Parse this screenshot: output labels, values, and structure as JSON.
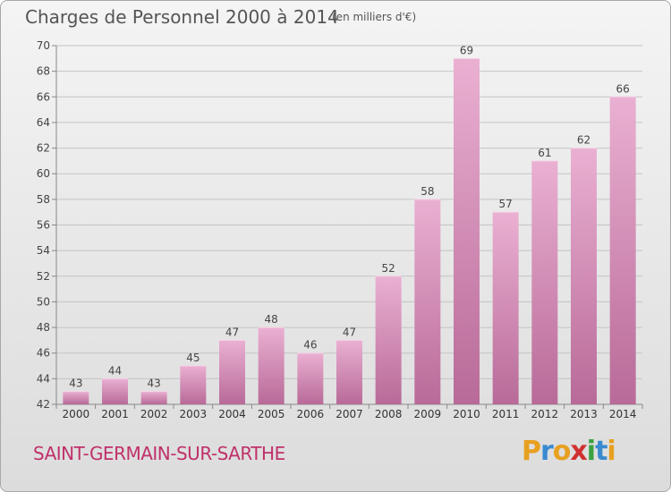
{
  "title": "Charges de Personnel 2000 à 2014",
  "unit": "(en milliers d'€)",
  "commune": "SAINT-GERMAIN-SUR-SARTHE",
  "brand": {
    "letters": [
      "P",
      "r",
      "o",
      "x",
      "i",
      "t",
      "i"
    ],
    "colors": [
      "#e8a020",
      "#3a8ad0",
      "#e8a020",
      "#d03030",
      "#3aa040",
      "#3a8ad0",
      "#e8a020"
    ]
  },
  "colors": {
    "bar_top": "#eab0d2",
    "bar_bottom": "#b86a98",
    "title": "#555555",
    "commune": "#c0306a"
  },
  "chart_data": {
    "type": "bar",
    "categories": [
      "2000",
      "2001",
      "2002",
      "2003",
      "2004",
      "2005",
      "2006",
      "2007",
      "2008",
      "2009",
      "2010",
      "2011",
      "2012",
      "2013",
      "2014"
    ],
    "values": [
      43,
      44,
      43,
      45,
      47,
      48,
      46,
      47,
      52,
      58,
      69,
      57,
      61,
      62,
      66
    ],
    "ylim": [
      42,
      70
    ],
    "yticks": [
      42,
      44,
      46,
      48,
      50,
      52,
      54,
      56,
      58,
      60,
      62,
      64,
      66,
      68,
      70
    ],
    "grid": true,
    "data_labels": true
  }
}
